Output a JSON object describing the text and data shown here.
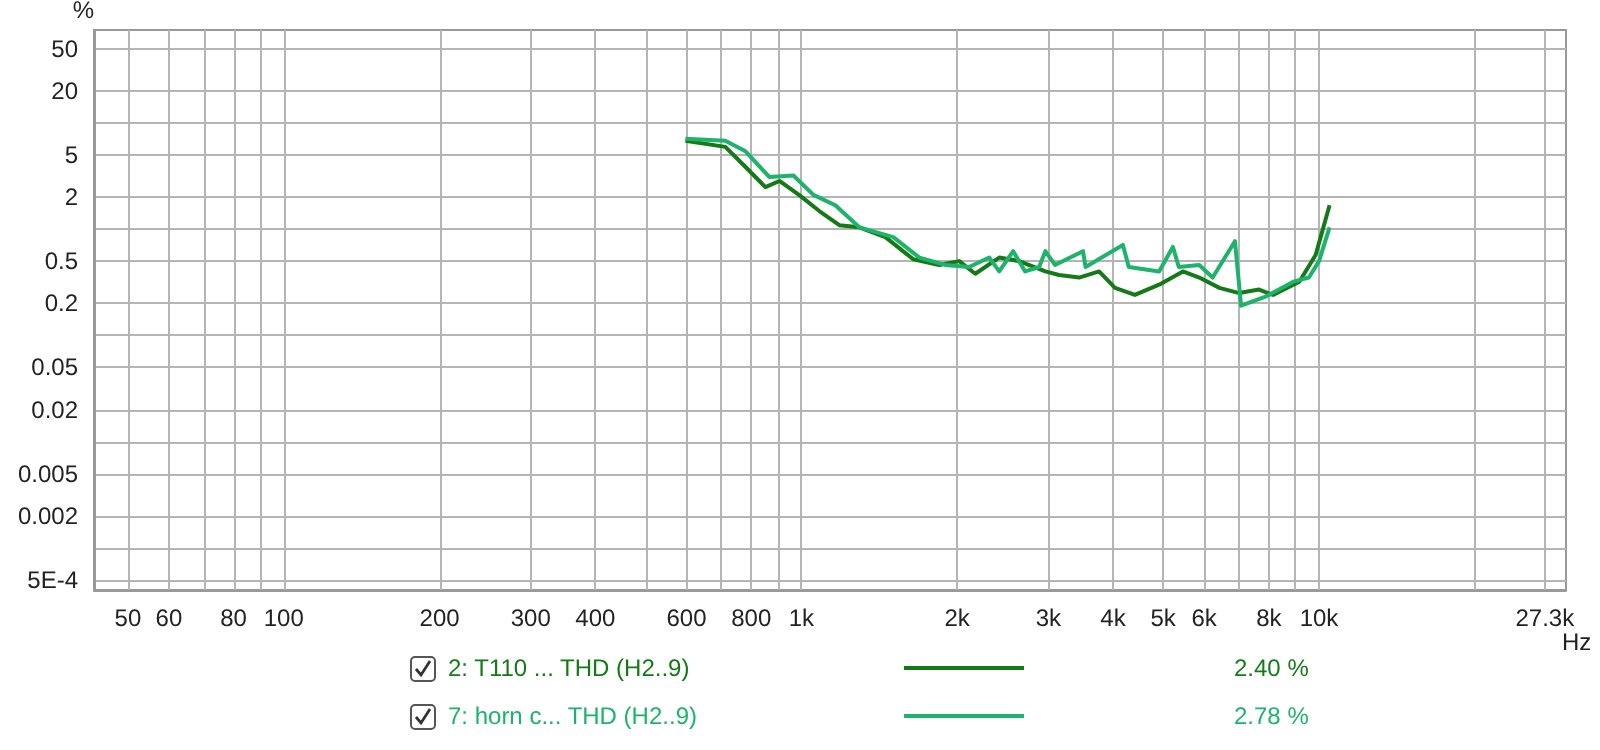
{
  "chart_data": {
    "type": "line",
    "ylabel": "%",
    "x": [
      597,
      713,
      780,
      852,
      907,
      991,
      1083,
      1184,
      1294,
      1453,
      1645,
      1846,
      2018,
      2167,
      2411,
      2634,
      2960,
      3146,
      3440,
      3760,
      4035,
      4409,
      4910,
      5460,
      5870,
      6420,
      7010,
      7660,
      8150,
      9160,
      9850,
      10480
    ],
    "series": [
      {
        "name": "2: T110 ... THD (H2..9)",
        "color": "#137a17",
        "values": [
          6.8,
          5.95,
          3.85,
          2.49,
          2.84,
          2.09,
          1.48,
          1.09,
          1.04,
          0.84,
          0.52,
          0.46,
          0.5,
          0.38,
          0.54,
          0.5,
          0.4,
          0.37,
          0.35,
          0.4,
          0.28,
          0.24,
          0.3,
          0.4,
          0.35,
          0.28,
          0.25,
          0.27,
          0.24,
          0.32,
          0.57,
          1.68
        ]
      },
      {
        "name": "7: horn c... THD (H2..9)",
        "color": "#1db36b",
        "x": [
          597,
          713,
          780,
          867,
          965,
          1055,
          1163,
          1294,
          1505,
          1690,
          1897,
          2109,
          2307,
          2411,
          2565,
          2705,
          2880,
          2960,
          3090,
          3500,
          3540,
          4180,
          4290,
          4910,
          5220,
          5360,
          5870,
          6230,
          6880,
          7070,
          7860,
          8920,
          9560,
          10000,
          10480
        ],
        "values": [
          7.1,
          6.8,
          5.4,
          3.1,
          3.2,
          2.1,
          1.68,
          1.04,
          0.84,
          0.54,
          0.46,
          0.44,
          0.54,
          0.4,
          0.62,
          0.4,
          0.44,
          0.62,
          0.46,
          0.62,
          0.44,
          0.71,
          0.44,
          0.4,
          0.68,
          0.44,
          0.46,
          0.35,
          0.77,
          0.19,
          0.23,
          0.32,
          0.35,
          0.5,
          1.04
        ]
      }
    ],
    "annotations": [
      "2.40 %",
      "2.78 %"
    ],
    "log": "xy",
    "grid": true,
    "legend": "bottom",
    "xlim": [
      43,
      30000
    ],
    "xticks": [
      50,
      60,
      {
        "value": 70,
        "label": null
      },
      80,
      {
        "value": 90,
        "label": null
      },
      100,
      200,
      300,
      400,
      {
        "value": 500,
        "label": null
      },
      600,
      {
        "value": 700,
        "label": null
      },
      800,
      {
        "value": 900,
        "label": null
      },
      {
        "value": 1000,
        "label": "1k"
      },
      {
        "value": 2000,
        "label": "2k"
      },
      {
        "value": 3000,
        "label": "3k"
      },
      {
        "value": 4000,
        "label": "4k"
      },
      {
        "value": 5000,
        "label": "5k"
      },
      {
        "value": 6000,
        "label": "6k"
      },
      {
        "value": 7000,
        "label": null
      },
      {
        "value": 8000,
        "label": "8k"
      },
      {
        "value": 9000,
        "label": null
      },
      {
        "value": 10000,
        "label": "10k"
      },
      {
        "value": 20000,
        "label": null
      },
      {
        "value": 27300,
        "label": "27.3k"
      }
    ],
    "xlabel": "Hz",
    "ylim": [
      0.0004,
      75
    ],
    "yticks": [
      {
        "value": 0.0005,
        "label": "5E-4"
      },
      {
        "value": 0.001,
        "label": null
      },
      0.002,
      0.005,
      {
        "value": 0.01,
        "label": null
      },
      0.02,
      0.05,
      {
        "value": 0.1,
        "label": null
      },
      0.2,
      0.5,
      {
        "value": 1,
        "label": null
      },
      2,
      5,
      {
        "value": 10,
        "label": null
      },
      20,
      50
    ]
  }
}
